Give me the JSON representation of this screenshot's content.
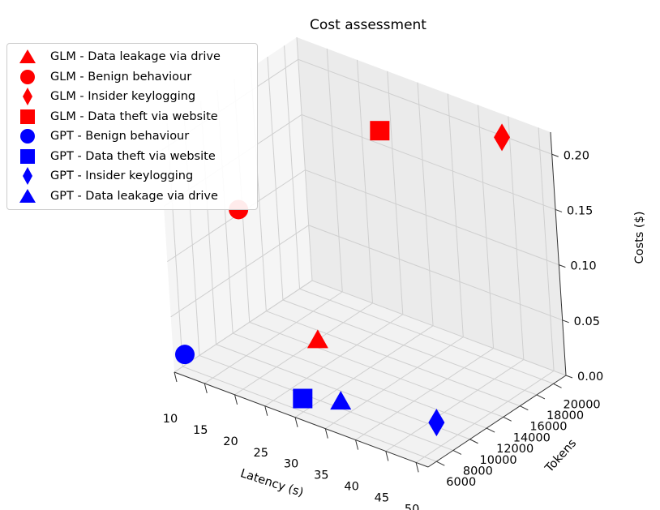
{
  "chart_data": {
    "type": "scatter",
    "title": "Cost assessment",
    "xlabel": "Latency (s)",
    "ylabel": "Tokens",
    "zlabel": "Costs ($)",
    "xlim": [
      10,
      52
    ],
    "ylim": [
      5000,
      21500
    ],
    "zlim": [
      0,
      0.22
    ],
    "xticks": [
      "10",
      "15",
      "20",
      "25",
      "30",
      "35",
      "40",
      "45",
      "50"
    ],
    "yticks": [
      "6000",
      "8000",
      "10000",
      "12000",
      "14000",
      "16000",
      "18000",
      "20000"
    ],
    "zticks": [
      "0.00",
      "0.05",
      "0.10",
      "0.15",
      "0.20"
    ],
    "legend_position": "upper-left",
    "series": [
      {
        "name": "GLM - Data leakage via drive",
        "color": "#ff0000",
        "marker": "triangle",
        "x": 32,
        "y": 6800,
        "z": 0.065
      },
      {
        "name": "GLM - Benign behaviour",
        "color": "#ff0000",
        "marker": "circle",
        "x": 12,
        "y": 12200,
        "z": 0.115
      },
      {
        "name": "GLM - Insider keylogging",
        "color": "#ff0000",
        "marker": "diamond",
        "x": 44,
        "y": 21300,
        "z": 0.2
      },
      {
        "name": "GLM - Data theft via website",
        "color": "#ff0000",
        "marker": "square",
        "x": 30,
        "y": 16800,
        "z": 0.2
      },
      {
        "name": "GPT - Benign behaviour",
        "color": "#0000ff",
        "marker": "circle",
        "x": 10.5,
        "y": 6000,
        "z": 0.012
      },
      {
        "name": "GPT - Data theft via website",
        "color": "#0000ff",
        "marker": "square",
        "x": 30,
        "y": 6000,
        "z": 0.012
      },
      {
        "name": "GPT - Insider keylogging",
        "color": "#0000ff",
        "marker": "diamond",
        "x": 48,
        "y": 9000,
        "z": 0.012
      },
      {
        "name": "GPT - Data leakage via drive",
        "color": "#0000ff",
        "marker": "triangle",
        "x": 34.5,
        "y": 7300,
        "z": 0.012
      }
    ]
  }
}
